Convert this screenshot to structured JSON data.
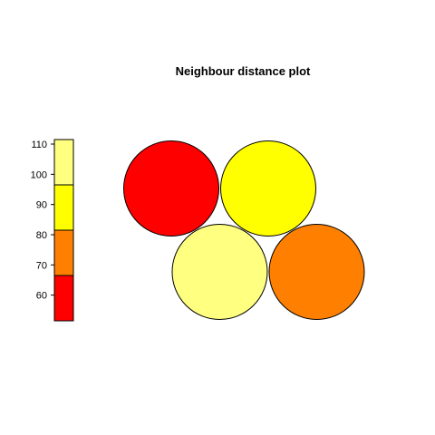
{
  "chart_data": {
    "type": "other",
    "title": "Neighbour distance plot",
    "colorbar": {
      "ticks": [
        60,
        70,
        80,
        90,
        100,
        110
      ],
      "range": [
        51.5,
        111.5
      ],
      "bands": [
        {
          "from": 51.5,
          "to": 66.5,
          "color": "#FF0000"
        },
        {
          "from": 66.5,
          "to": 81.5,
          "color": "#FF8000"
        },
        {
          "from": 81.5,
          "to": 96.5,
          "color": "#FFFF00"
        },
        {
          "from": 96.5,
          "to": 111.5,
          "color": "#FFFF80"
        }
      ]
    },
    "grid": {
      "columns": 2,
      "rows": 2,
      "layout": "hexagonal"
    },
    "nodes": [
      {
        "row": 2,
        "col": 1,
        "value": 58,
        "color": "#FF0000"
      },
      {
        "row": 2,
        "col": 2,
        "value": 88,
        "color": "#FFFF00"
      },
      {
        "row": 1,
        "col": 1,
        "value": 104,
        "color": "#FFFF80"
      },
      {
        "row": 1,
        "col": 2,
        "value": 73,
        "color": "#FF8000"
      }
    ]
  }
}
